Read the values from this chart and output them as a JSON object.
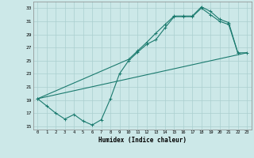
{
  "line1_x": [
    0,
    1,
    2,
    3,
    4,
    5,
    6,
    7,
    8,
    9,
    10,
    11,
    12,
    13,
    14,
    15,
    16,
    17,
    18,
    19,
    20,
    21,
    22
  ],
  "line1_y": [
    19.2,
    18.1,
    17.0,
    16.1,
    16.8,
    15.8,
    15.2,
    16.0,
    19.2,
    23.0,
    25.0,
    26.3,
    27.5,
    28.2,
    30.0,
    31.7,
    31.7,
    31.7,
    33.0,
    32.0,
    31.0,
    30.5,
    26.2
  ],
  "line2_x": [
    0,
    23
  ],
  "line2_y": [
    19.2,
    26.2
  ],
  "line3_x": [
    0,
    10,
    11,
    12,
    13,
    14,
    15,
    16,
    17,
    18,
    19,
    20,
    21,
    22,
    23
  ],
  "line3_y": [
    19.2,
    25.2,
    26.5,
    27.8,
    29.2,
    30.5,
    31.8,
    31.8,
    31.8,
    33.2,
    32.5,
    31.3,
    30.8,
    26.2,
    26.2
  ],
  "line_color": "#1a7a6e",
  "bg_color": "#cce8e8",
  "grid_color": "#aacfcf",
  "ylabel_ticks": [
    15,
    17,
    19,
    21,
    23,
    25,
    27,
    29,
    31,
    33
  ],
  "xlabel_ticks": [
    0,
    1,
    2,
    3,
    4,
    5,
    6,
    7,
    8,
    9,
    10,
    11,
    12,
    13,
    14,
    15,
    16,
    17,
    18,
    19,
    20,
    21,
    22,
    23
  ],
  "xlabel": "Humidex (Indice chaleur)",
  "xlim": [
    -0.5,
    23.5
  ],
  "ylim": [
    14.5,
    34.0
  ]
}
